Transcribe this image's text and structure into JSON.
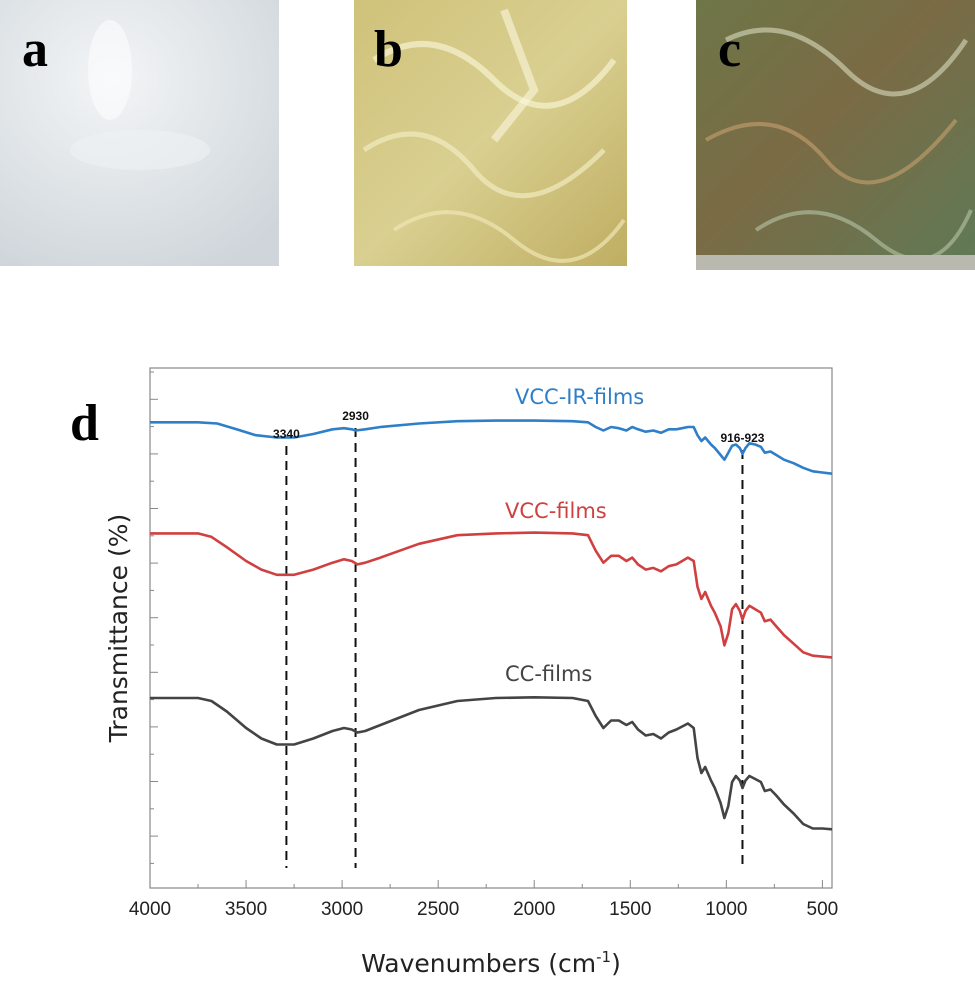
{
  "panels": [
    {
      "letter": "a",
      "description_color": "#dfe3e6"
    },
    {
      "letter": "b",
      "description_color": "#d8cf8a"
    },
    {
      "letter": "c",
      "description_color": "#6f7a52"
    }
  ],
  "chart_data": {
    "type": "line",
    "panel_letter": "d",
    "xlabel": "Wavenumbers (cm",
    "xlabel_sup": "-1",
    "xlabel_end": ")",
    "ylabel": "Transmittance (%)",
    "xlim": [
      4000,
      450
    ],
    "x_reversed": true,
    "x_ticks": [
      4000,
      3500,
      3000,
      2500,
      2000,
      1500,
      1000,
      500
    ],
    "y_ticks_shown": false,
    "grid": false,
    "series": [
      {
        "name": "VCC-IR-films",
        "color": "#2f7fc8",
        "points": [
          [
            4000,
            98
          ],
          [
            3750,
            98
          ],
          [
            3650,
            97
          ],
          [
            3550,
            92
          ],
          [
            3450,
            87
          ],
          [
            3340,
            85
          ],
          [
            3250,
            85
          ],
          [
            3150,
            88
          ],
          [
            3050,
            92
          ],
          [
            2990,
            93
          ],
          [
            2950,
            92
          ],
          [
            2930,
            91
          ],
          [
            2880,
            92
          ],
          [
            2800,
            94
          ],
          [
            2600,
            97
          ],
          [
            2400,
            99
          ],
          [
            2200,
            99.5
          ],
          [
            2000,
            99.5
          ],
          [
            1800,
            99
          ],
          [
            1720,
            98
          ],
          [
            1680,
            94
          ],
          [
            1640,
            91
          ],
          [
            1600,
            94
          ],
          [
            1560,
            93
          ],
          [
            1520,
            91
          ],
          [
            1490,
            94
          ],
          [
            1460,
            92
          ],
          [
            1420,
            90
          ],
          [
            1380,
            91
          ],
          [
            1340,
            89
          ],
          [
            1300,
            92
          ],
          [
            1260,
            92
          ],
          [
            1230,
            93
          ],
          [
            1200,
            94
          ],
          [
            1170,
            94
          ],
          [
            1150,
            87
          ],
          [
            1130,
            82
          ],
          [
            1110,
            85
          ],
          [
            1080,
            79
          ],
          [
            1060,
            76
          ],
          [
            1030,
            70
          ],
          [
            1010,
            66
          ],
          [
            990,
            72
          ],
          [
            970,
            78
          ],
          [
            950,
            79
          ],
          [
            930,
            76
          ],
          [
            916,
            71
          ],
          [
            900,
            76
          ],
          [
            880,
            80
          ],
          [
            850,
            79
          ],
          [
            820,
            77
          ],
          [
            800,
            72
          ],
          [
            770,
            73
          ],
          [
            740,
            70
          ],
          [
            700,
            66
          ],
          [
            650,
            63
          ],
          [
            600,
            59
          ],
          [
            550,
            56
          ],
          [
            500,
            55
          ],
          [
            450,
            54
          ]
        ]
      },
      {
        "name": "VCC-films",
        "color": "#d04040",
        "points": [
          [
            4000,
            98
          ],
          [
            3750,
            98
          ],
          [
            3680,
            96
          ],
          [
            3600,
            90
          ],
          [
            3500,
            82
          ],
          [
            3420,
            77
          ],
          [
            3340,
            74
          ],
          [
            3250,
            74
          ],
          [
            3150,
            77
          ],
          [
            3050,
            81
          ],
          [
            2990,
            83
          ],
          [
            2950,
            82
          ],
          [
            2920,
            80
          ],
          [
            2880,
            81
          ],
          [
            2800,
            84
          ],
          [
            2600,
            92
          ],
          [
            2400,
            97
          ],
          [
            2200,
            98
          ],
          [
            2000,
            98.5
          ],
          [
            1800,
            98
          ],
          [
            1720,
            97
          ],
          [
            1680,
            88
          ],
          [
            1640,
            81
          ],
          [
            1600,
            85
          ],
          [
            1560,
            85
          ],
          [
            1520,
            82
          ],
          [
            1490,
            84
          ],
          [
            1460,
            80
          ],
          [
            1420,
            77
          ],
          [
            1380,
            78
          ],
          [
            1340,
            76
          ],
          [
            1300,
            79
          ],
          [
            1260,
            80
          ],
          [
            1230,
            82
          ],
          [
            1200,
            84
          ],
          [
            1170,
            82
          ],
          [
            1150,
            67
          ],
          [
            1130,
            60
          ],
          [
            1110,
            64
          ],
          [
            1080,
            56
          ],
          [
            1060,
            52
          ],
          [
            1030,
            44
          ],
          [
            1010,
            33
          ],
          [
            990,
            40
          ],
          [
            970,
            54
          ],
          [
            950,
            57
          ],
          [
            930,
            53
          ],
          [
            916,
            48
          ],
          [
            900,
            53
          ],
          [
            880,
            56
          ],
          [
            850,
            54
          ],
          [
            820,
            52
          ],
          [
            800,
            47
          ],
          [
            770,
            48
          ],
          [
            740,
            44
          ],
          [
            700,
            39
          ],
          [
            650,
            34
          ],
          [
            600,
            29
          ],
          [
            550,
            27
          ],
          [
            500,
            26.5
          ],
          [
            450,
            26
          ]
        ]
      },
      {
        "name": "CC-films",
        "color": "#444444",
        "points": [
          [
            4000,
            98
          ],
          [
            3750,
            98
          ],
          [
            3680,
            96
          ],
          [
            3600,
            89
          ],
          [
            3500,
            78
          ],
          [
            3420,
            71
          ],
          [
            3340,
            67
          ],
          [
            3250,
            67
          ],
          [
            3150,
            71
          ],
          [
            3050,
            76
          ],
          [
            2990,
            78
          ],
          [
            2950,
            77
          ],
          [
            2920,
            75
          ],
          [
            2880,
            76
          ],
          [
            2800,
            80
          ],
          [
            2600,
            90
          ],
          [
            2400,
            96
          ],
          [
            2200,
            98
          ],
          [
            2000,
            98.5
          ],
          [
            1800,
            98
          ],
          [
            1720,
            96
          ],
          [
            1680,
            86
          ],
          [
            1640,
            78
          ],
          [
            1600,
            83
          ],
          [
            1560,
            83
          ],
          [
            1520,
            80
          ],
          [
            1490,
            82
          ],
          [
            1460,
            77
          ],
          [
            1420,
            73
          ],
          [
            1380,
            74
          ],
          [
            1340,
            71
          ],
          [
            1300,
            75
          ],
          [
            1260,
            77
          ],
          [
            1230,
            79
          ],
          [
            1200,
            81
          ],
          [
            1170,
            78
          ],
          [
            1150,
            58
          ],
          [
            1130,
            48
          ],
          [
            1110,
            52
          ],
          [
            1080,
            43
          ],
          [
            1060,
            38
          ],
          [
            1030,
            28
          ],
          [
            1010,
            18
          ],
          [
            990,
            26
          ],
          [
            970,
            42
          ],
          [
            950,
            46
          ],
          [
            930,
            43
          ],
          [
            916,
            38
          ],
          [
            900,
            43
          ],
          [
            880,
            46
          ],
          [
            850,
            44
          ],
          [
            820,
            42
          ],
          [
            800,
            36
          ],
          [
            770,
            37
          ],
          [
            740,
            33
          ],
          [
            700,
            27
          ],
          [
            650,
            21
          ],
          [
            600,
            14
          ],
          [
            550,
            11
          ],
          [
            500,
            11
          ],
          [
            450,
            10.5
          ]
        ]
      }
    ],
    "annotations": [
      {
        "text": "3340",
        "x": 3290
      },
      {
        "text": "2930",
        "x": 2930
      },
      {
        "text": "916-923",
        "x": 916
      }
    ]
  }
}
